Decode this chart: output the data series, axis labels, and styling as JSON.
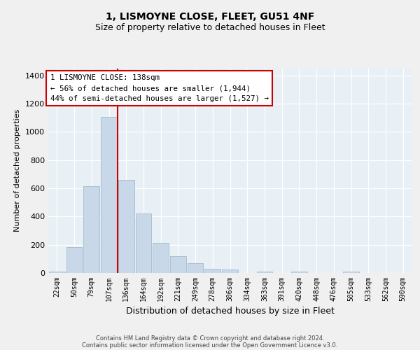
{
  "title": "1, LISMOYNE CLOSE, FLEET, GU51 4NF",
  "subtitle": "Size of property relative to detached houses in Fleet",
  "xlabel": "Distribution of detached houses by size in Fleet",
  "ylabel": "Number of detached properties",
  "bar_color": "#c8d8e8",
  "bar_edge_color": "#a8c0d4",
  "background_color": "#e8eff5",
  "grid_color": "#ffffff",
  "property_line_color": "#cc0000",
  "annotation_box_color": "#cc0000",
  "annotation_lines": [
    "1 LISMOYNE CLOSE: 138sqm",
    "← 56% of detached houses are smaller (1,944)",
    "44% of semi-detached houses are larger (1,527) →"
  ],
  "categories": [
    "22sqm",
    "50sqm",
    "79sqm",
    "107sqm",
    "136sqm",
    "164sqm",
    "192sqm",
    "221sqm",
    "249sqm",
    "278sqm",
    "306sqm",
    "334sqm",
    "363sqm",
    "391sqm",
    "420sqm",
    "448sqm",
    "476sqm",
    "505sqm",
    "533sqm",
    "562sqm",
    "590sqm"
  ],
  "values": [
    10,
    185,
    615,
    1105,
    660,
    420,
    215,
    120,
    68,
    30,
    25,
    0,
    12,
    0,
    10,
    0,
    0,
    8,
    0,
    0,
    0
  ],
  "ylim": [
    0,
    1450
  ],
  "yticks": [
    0,
    200,
    400,
    600,
    800,
    1000,
    1200,
    1400
  ],
  "prop_line_index": 4,
  "footer_lines": [
    "Contains HM Land Registry data © Crown copyright and database right 2024.",
    "Contains public sector information licensed under the Open Government Licence v3.0."
  ]
}
